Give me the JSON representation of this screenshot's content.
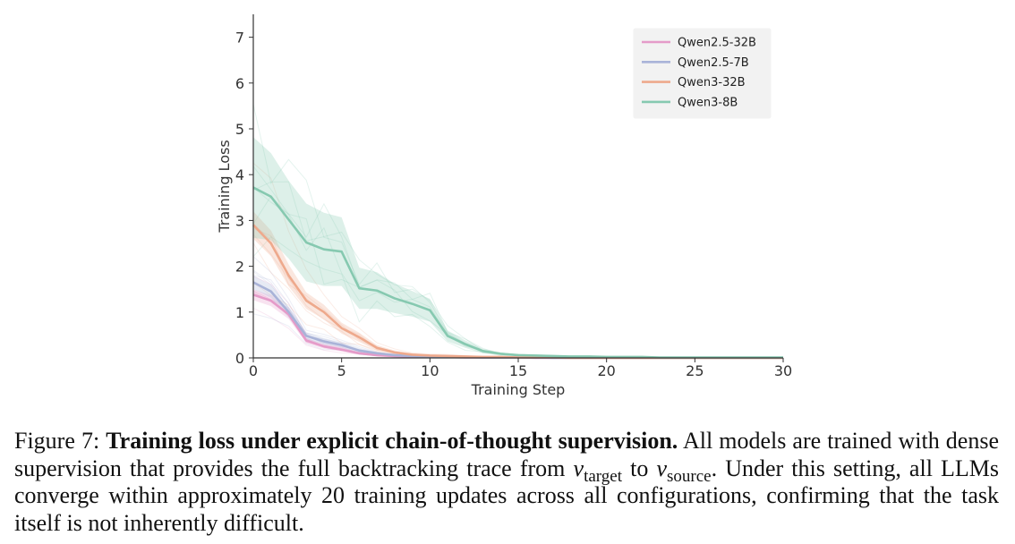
{
  "chart_data": {
    "type": "line",
    "xlabel": "Training Step",
    "ylabel": "Training Loss",
    "xlim": [
      0,
      30
    ],
    "ylim": [
      0,
      7.5
    ],
    "xticks": [
      0,
      5,
      10,
      15,
      20,
      25,
      30
    ],
    "yticks": [
      0,
      1,
      2,
      3,
      4,
      5,
      6,
      7
    ],
    "grid": false,
    "legend_position": "top-right",
    "x": [
      0,
      1,
      2,
      3,
      4,
      5,
      6,
      7,
      8,
      9,
      10,
      11,
      12,
      13,
      14,
      15,
      16,
      17,
      18,
      19,
      20,
      21,
      22,
      23,
      24,
      25,
      26,
      27,
      28,
      29,
      30
    ],
    "series": [
      {
        "name": "Qwen2.5-32B",
        "color": "#e59bc9",
        "values": [
          1.38,
          1.25,
          0.95,
          0.38,
          0.25,
          0.18,
          0.1,
          0.06,
          0.04,
          0.03,
          0.02,
          0.02,
          0.01,
          0.01,
          0.01,
          0.01,
          0.0,
          0.0,
          0.0,
          0.0,
          0.0,
          0.0,
          0.0,
          0.0,
          0.0,
          0.0,
          0.0,
          0.0,
          0.0,
          0.0,
          0.0
        ],
        "band": [
          0.12,
          0.12,
          0.1,
          0.06,
          0.05,
          0.04,
          0.03,
          0.02,
          0.02,
          0.01,
          0.01,
          0.01,
          0.01,
          0.0,
          0.0,
          0.0,
          0.0,
          0.0,
          0.0,
          0.0,
          0.0,
          0.0,
          0.0,
          0.0,
          0.0,
          0.0,
          0.0,
          0.0,
          0.0,
          0.0,
          0.0
        ]
      },
      {
        "name": "Qwen2.5-7B",
        "color": "#a9b3d8",
        "values": [
          1.65,
          1.45,
          1.0,
          0.48,
          0.36,
          0.28,
          0.16,
          0.1,
          0.06,
          0.04,
          0.03,
          0.02,
          0.02,
          0.01,
          0.01,
          0.01,
          0.01,
          0.0,
          0.0,
          0.0,
          0.0,
          0.0,
          0.0,
          0.0,
          0.0,
          0.0,
          0.0,
          0.0,
          0.0,
          0.0,
          0.0
        ],
        "band": [
          0.15,
          0.14,
          0.12,
          0.08,
          0.07,
          0.06,
          0.04,
          0.03,
          0.02,
          0.02,
          0.01,
          0.01,
          0.01,
          0.0,
          0.0,
          0.0,
          0.0,
          0.0,
          0.0,
          0.0,
          0.0,
          0.0,
          0.0,
          0.0,
          0.0,
          0.0,
          0.0,
          0.0,
          0.0,
          0.0,
          0.0
        ]
      },
      {
        "name": "Qwen3-32B",
        "color": "#eea98c",
        "values": [
          2.9,
          2.5,
          1.8,
          1.25,
          1.0,
          0.65,
          0.45,
          0.22,
          0.12,
          0.07,
          0.05,
          0.04,
          0.03,
          0.02,
          0.02,
          0.01,
          0.01,
          0.01,
          0.0,
          0.0,
          0.0,
          0.0,
          0.0,
          0.0,
          0.0,
          0.0,
          0.0,
          0.0,
          0.0,
          0.0,
          0.0
        ],
        "band": [
          0.3,
          0.28,
          0.24,
          0.18,
          0.16,
          0.12,
          0.1,
          0.06,
          0.04,
          0.03,
          0.02,
          0.02,
          0.01,
          0.01,
          0.01,
          0.0,
          0.0,
          0.0,
          0.0,
          0.0,
          0.0,
          0.0,
          0.0,
          0.0,
          0.0,
          0.0,
          0.0,
          0.0,
          0.0,
          0.0,
          0.0
        ]
      },
      {
        "name": "Qwen3-8B",
        "color": "#86c9b0",
        "values": [
          3.72,
          3.52,
          3.02,
          2.52,
          2.37,
          2.32,
          1.52,
          1.47,
          1.3,
          1.18,
          1.04,
          0.48,
          0.3,
          0.15,
          0.09,
          0.06,
          0.05,
          0.04,
          0.03,
          0.03,
          0.02,
          0.02,
          0.02,
          0.01,
          0.01,
          0.01,
          0.01,
          0.01,
          0.01,
          0.01,
          0.01
        ],
        "band": [
          1.1,
          0.95,
          0.85,
          0.85,
          0.8,
          0.75,
          0.45,
          0.4,
          0.32,
          0.28,
          0.25,
          0.12,
          0.08,
          0.05,
          0.03,
          0.02,
          0.02,
          0.01,
          0.01,
          0.01,
          0.01,
          0.01,
          0.01,
          0.0,
          0.0,
          0.0,
          0.0,
          0.0,
          0.0,
          0.0,
          0.0
        ]
      }
    ]
  },
  "caption": {
    "figure_label": "Figure 7:",
    "title_bold": "Training loss under explicit chain-of-thought supervision.",
    "text_1": "All models are trained with dense supervision that provides the full backtracking trace from",
    "var_target": "v",
    "sub_target": "target",
    "text_2": "to",
    "var_source": "v",
    "sub_source": "source",
    "text_3": ". Under this setting, all LLMs converge within approximately 20 training updates across all configurations, confirming that the task itself is not inherently difficult."
  }
}
